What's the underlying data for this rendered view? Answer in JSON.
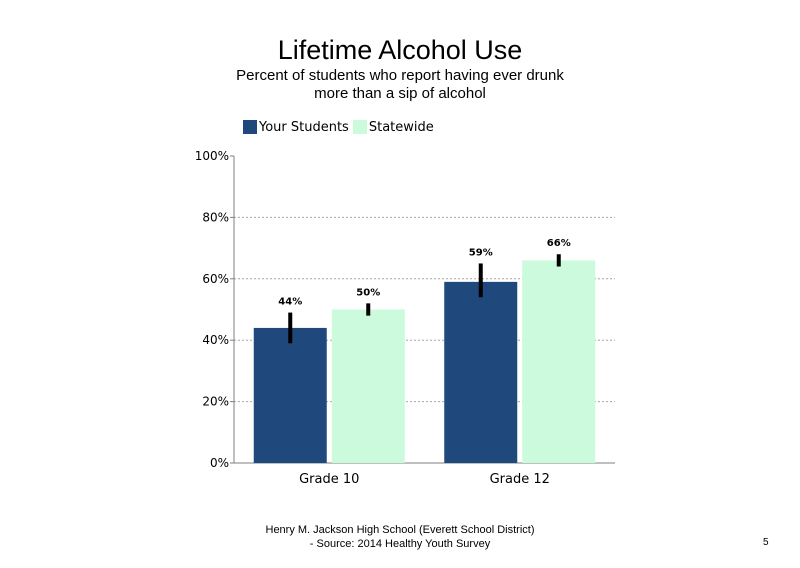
{
  "slide": {
    "title": "Lifetime Alcohol Use",
    "subtitle": "Percent of students who report having ever drunk more than a sip of alcohol",
    "footer_line1": "Henry M. Jackson High School (Everett School District)",
    "footer_line2": "- Source: 2014 Healthy Youth Survey",
    "page_number": "5"
  },
  "chart_data": {
    "type": "bar",
    "title": "Lifetime Alcohol Use",
    "subtitle": "Percent of students who report having ever drunk more than a sip of alcohol",
    "categories": [
      "Grade 10",
      "Grade 12"
    ],
    "series": [
      {
        "name": "Your Students",
        "color": "#1f497d",
        "values": [
          44,
          59
        ],
        "labels": [
          "44%",
          "59%"
        ],
        "error_low": [
          39,
          54
        ],
        "error_high": [
          49,
          65
        ]
      },
      {
        "name": "Statewide",
        "color": "#ccfadc",
        "values": [
          50,
          66
        ],
        "labels": [
          "50%",
          "66%"
        ],
        "error_low": [
          48,
          64
        ],
        "error_high": [
          52,
          68
        ]
      }
    ],
    "ylim": [
      0,
      100
    ],
    "yticks": [
      0,
      20,
      40,
      60,
      80,
      100
    ],
    "ytick_labels": [
      "0%",
      "20%",
      "40%",
      "60%",
      "80%",
      "100%"
    ],
    "grid": true,
    "legend_position": "top-left",
    "error_bar_color": "#000000"
  }
}
